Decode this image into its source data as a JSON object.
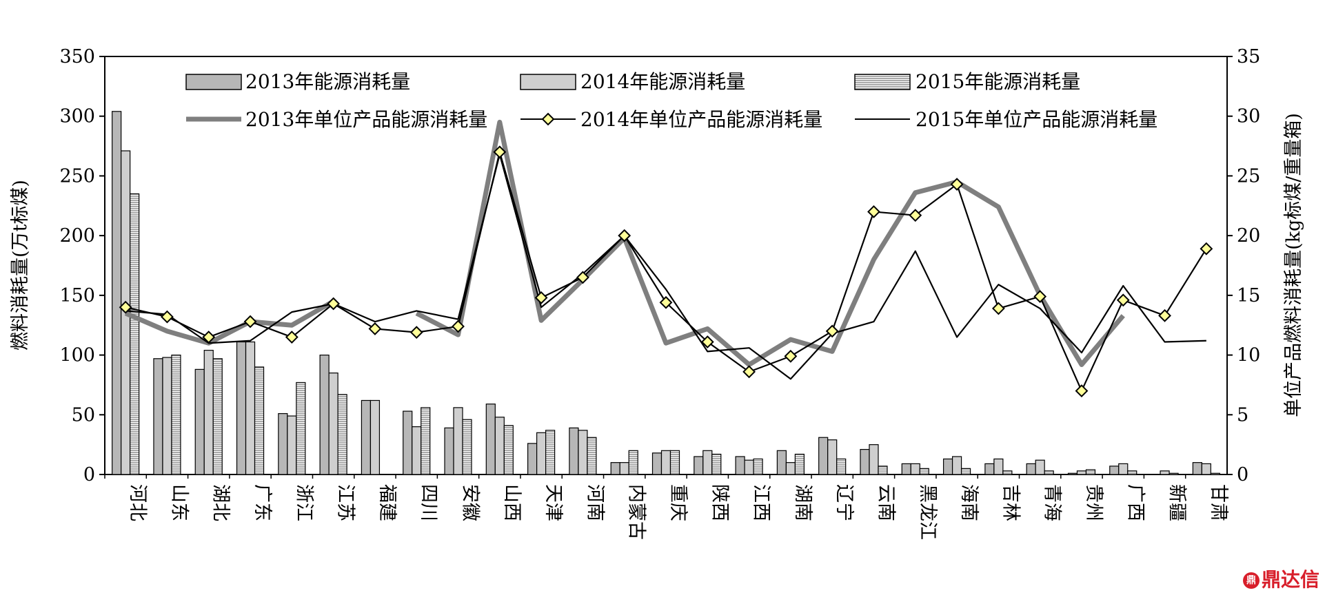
{
  "chart_data": {
    "type": "bar+line",
    "title": "",
    "categories": [
      "河北",
      "山东",
      "湖北",
      "广东",
      "浙江",
      "江苏",
      "福建",
      "四川",
      "安徽",
      "山西",
      "天津",
      "河南",
      "内蒙古",
      "重庆",
      "陕西",
      "江西",
      "湖南",
      "辽宁",
      "云南",
      "黑龙江",
      "海南",
      "吉林",
      "青海",
      "贵州",
      "广西",
      "新疆",
      "甘肃"
    ],
    "ylabel": "燃料消耗量(万t标煤)",
    "y2label": "单位产品燃料消耗量(kg标煤/重量箱)",
    "ylim": [
      0,
      350
    ],
    "y2lim": [
      0,
      35
    ],
    "yticks": [
      "0",
      "50",
      "100",
      "150",
      "200",
      "250",
      "300",
      "350"
    ],
    "y2ticks": [
      "0",
      "5",
      "10",
      "15",
      "20",
      "25",
      "30",
      "35"
    ],
    "bar_series": [
      {
        "name": "2013年能源消耗量",
        "color": "#b7b7b7",
        "values": [
          304,
          97,
          88,
          111,
          51,
          100,
          62,
          53,
          39,
          59,
          26,
          39,
          10,
          18,
          15,
          15,
          20,
          31,
          21,
          9,
          13,
          9,
          9,
          1,
          7,
          0,
          10
        ]
      },
      {
        "name": "2014年能源消耗量",
        "color": "#cfcfcf",
        "values": [
          271,
          98,
          104,
          111,
          49,
          85,
          62,
          40,
          56,
          48,
          35,
          37,
          10,
          20,
          20,
          12,
          10,
          29,
          25,
          9,
          15,
          13,
          12,
          3,
          9,
          3,
          9
        ]
      },
      {
        "name": "2015年能源消耗量",
        "color": "#8c8c8c",
        "values": [
          235,
          100,
          97,
          90,
          77,
          67,
          null,
          56,
          46,
          41,
          37,
          31,
          20,
          20,
          17,
          13,
          17,
          13,
          7,
          5,
          5,
          3,
          3,
          4,
          3,
          1,
          1
        ]
      }
    ],
    "line_series": [
      {
        "name": "2013年单位产品能源消耗量",
        "color": "#7f7f7f",
        "values": [
          13.5,
          12,
          11,
          12.8,
          12.5,
          14.5,
          null,
          13.5,
          11.7,
          29.5,
          12.9,
          16.3,
          19.8,
          11,
          12.2,
          9.2,
          11.3,
          10.3,
          18,
          23.6,
          24.5,
          22.4,
          15,
          9.2,
          13.3,
          null,
          null
        ]
      },
      {
        "name": "2014年单位产品能源消耗量",
        "color": "#000000",
        "marker": "diamond",
        "marker_fill": "#ffff99",
        "values": [
          14,
          13.2,
          11.5,
          12.8,
          11.5,
          14.3,
          12.2,
          11.9,
          12.4,
          27,
          14.8,
          16.5,
          20,
          14.4,
          11.1,
          8.6,
          9.9,
          12,
          22,
          21.7,
          24.3,
          13.9,
          14.9,
          7,
          14.6,
          13.3,
          18.9
        ]
      },
      {
        "name": "2015年单位产品能源消耗量",
        "color": "#000000",
        "values": [
          13.7,
          13.4,
          11,
          11.2,
          13.6,
          14.3,
          12.8,
          13.7,
          13,
          26.8,
          14,
          16.8,
          20,
          15.5,
          10.3,
          10.6,
          8,
          11.8,
          12.8,
          18.7,
          11.5,
          15.9,
          13.9,
          10.2,
          15.8,
          11.1,
          11.2
        ]
      }
    ],
    "legend_position": "top-inside",
    "grid": false
  },
  "watermark": {
    "text": "鼎达信",
    "logo_text": "鼎"
  }
}
